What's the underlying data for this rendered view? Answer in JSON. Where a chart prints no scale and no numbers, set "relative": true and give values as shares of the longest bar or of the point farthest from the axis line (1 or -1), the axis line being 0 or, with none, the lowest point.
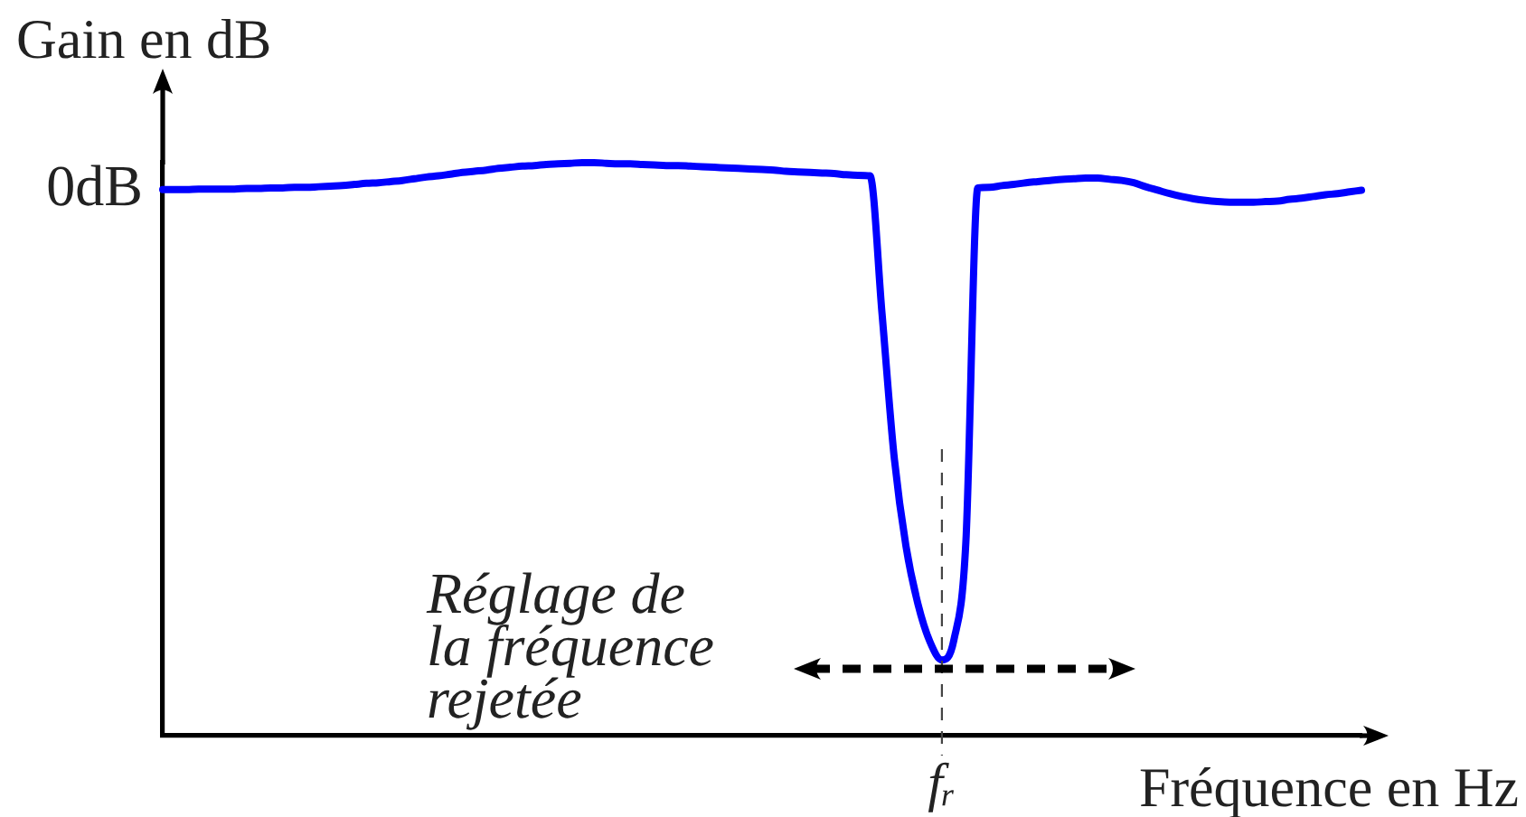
{
  "chart_data": {
    "type": "line",
    "ylabel": "Gain en dB",
    "xlabel": "Fréquence en Hz",
    "relative": true,
    "marker": "none",
    "line_style": "solid",
    "categories": [
      null,
      null,
      null,
      null,
      null,
      null,
      null,
      null,
      null,
      null,
      null,
      null,
      null,
      null,
      null,
      null,
      null,
      null,
      null,
      null,
      null,
      null,
      null,
      null,
      null,
      null,
      null,
      null,
      null,
      null,
      null,
      null,
      null,
      null,
      null,
      null,
      null,
      null,
      null,
      null,
      null,
      null,
      null,
      null,
      null,
      null,
      null,
      null,
      null,
      null,
      null,
      null,
      null,
      null,
      null,
      null,
      null,
      null,
      null,
      null,
      null,
      null,
      null,
      null,
      null,
      null,
      null,
      null,
      null,
      null,
      null,
      null,
      null,
      null,
      null,
      null,
      null,
      null,
      null,
      null,
      null,
      null,
      null,
      null,
      null,
      null,
      null,
      null,
      null,
      null,
      null,
      null,
      null,
      null,
      null,
      null,
      null,
      null,
      null,
      null,
      null
    ],
    "series": [
      {
        "color": "#0000ff",
        "values": [
          0.953,
          0.953,
          0.953,
          0.954,
          0.954,
          0.954,
          0.954,
          0.955,
          0.955,
          0.956,
          0.956,
          0.957,
          0.957,
          0.958,
          0.959,
          0.96,
          0.962,
          0.964,
          0.965,
          0.967,
          0.969,
          0.972,
          0.975,
          0.977,
          0.98,
          0.983,
          0.985,
          0.987,
          0.99,
          0.992,
          0.994,
          0.995,
          0.997,
          0.998,
          0.999,
          1,
          1,
          0.999,
          0.998,
          0.998,
          0.997,
          0.996,
          0.995,
          0.995,
          0.994,
          0.993,
          0.992,
          0.991,
          0.99,
          0.989,
          0.988,
          0.987,
          0.985,
          0.984,
          0.983,
          0.982,
          0.981,
          0.979,
          0.978,
          0.977,
          0.738,
          0.49,
          0.331,
          0.23,
          0.164,
          0.132,
          0.167,
          0.338,
          0.956,
          0.957,
          0.96,
          0.962,
          0.965,
          0.967,
          0.969,
          0.971,
          0.972,
          0.973,
          0.973,
          0.971,
          0.969,
          0.965,
          0.958,
          0.952,
          0.946,
          0.941,
          0.937,
          0.934,
          0.932,
          0.931,
          0.931,
          0.931,
          0.932,
          0.933,
          0.936,
          0.938,
          0.941,
          0.944,
          0.946,
          0.949,
          0.952
        ]
      }
    ],
    "ref_lines": [
      {
        "axis": "x",
        "label": "fᵣ",
        "line_style": "dashed",
        "color": "#444444"
      }
    ],
    "annotations": [
      "0dB",
      "Réglage de la fréquence rejetée"
    ]
  }
}
